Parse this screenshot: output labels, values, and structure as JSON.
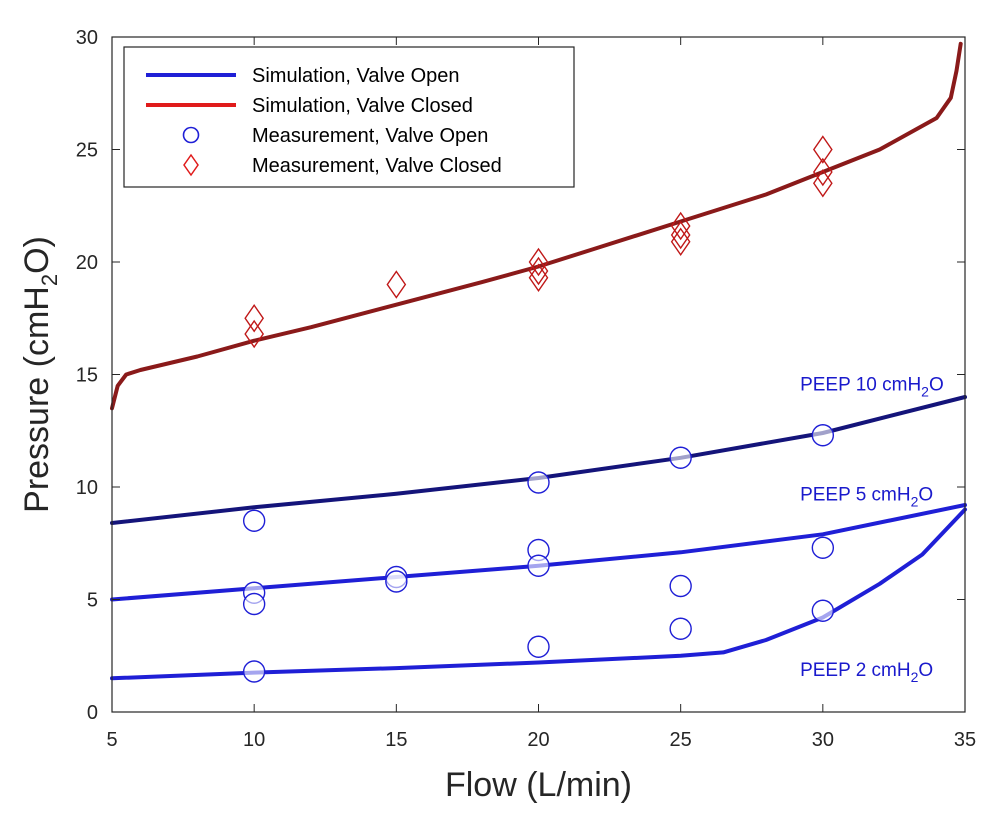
{
  "chart_data": {
    "type": "line",
    "xlabel": "Flow (L/min)",
    "ylabel": {
      "main": "Pressure (cmH",
      "sub": "2",
      "tail": "O)"
    },
    "xlim": [
      5,
      35
    ],
    "ylim": [
      0,
      30
    ],
    "xticks": [
      5,
      10,
      15,
      20,
      25,
      30,
      35
    ],
    "yticks": [
      0,
      5,
      10,
      15,
      20,
      25,
      30
    ],
    "grid": false,
    "legend_position": "top-left",
    "colors": {
      "valve_open": "#1f1fd6",
      "valve_closed": "#e01b1b",
      "valve_closed_line": "#8a1a1a",
      "peep10_line": "#14147a",
      "annotation": "#1a1acc",
      "axis": "#262626"
    },
    "legend": [
      {
        "label": "Simulation, Valve Open",
        "marker": "line",
        "color": "#1f1fd6"
      },
      {
        "label": "Simulation, Valve Closed",
        "marker": "line",
        "color": "#e01b1b"
      },
      {
        "label": "Measurement, Valve Open",
        "marker": "circle",
        "color": "#1f1fd6"
      },
      {
        "label": "Measurement, Valve Closed",
        "marker": "diamond",
        "color": "#e01b1b"
      }
    ],
    "annotations": [
      {
        "main": "PEEP 10 cmH",
        "sub": "2",
        "tail": "O",
        "x": 29.2,
        "y": 14.3
      },
      {
        "main": "PEEP 5 cmH",
        "sub": "2",
        "tail": "O",
        "x": 29.2,
        "y": 9.4
      },
      {
        "main": "PEEP 2 cmH",
        "sub": "2",
        "tail": "O",
        "x": 29.2,
        "y": 1.6
      }
    ],
    "series": [
      {
        "name": "Simulation, Valve Closed",
        "kind": "line",
        "color": "#8a1a1a",
        "x": [
          5,
          5.2,
          5.5,
          6,
          8,
          10,
          12,
          15,
          18,
          20,
          22,
          25,
          28,
          30,
          32,
          34,
          34.5,
          34.7,
          34.85
        ],
        "y": [
          13.5,
          14.5,
          15.0,
          15.2,
          15.8,
          16.5,
          17.1,
          18.1,
          19.1,
          19.8,
          20.6,
          21.8,
          23.0,
          24.0,
          25.0,
          26.4,
          27.3,
          28.5,
          29.7
        ]
      },
      {
        "name": "Simulation, Valve Open (PEEP 10)",
        "kind": "line",
        "color": "#14147a",
        "x": [
          5,
          10,
          15,
          20,
          25,
          30,
          35
        ],
        "y": [
          8.4,
          9.1,
          9.7,
          10.4,
          11.3,
          12.4,
          14.0
        ]
      },
      {
        "name": "Simulation, Valve Open (PEEP 5)",
        "kind": "line",
        "color": "#1f1fd6",
        "x": [
          5,
          10,
          15,
          20,
          25,
          30,
          35
        ],
        "y": [
          5.0,
          5.5,
          6.0,
          6.5,
          7.1,
          7.9,
          9.2
        ]
      },
      {
        "name": "Simulation, Valve Open (PEEP 2)",
        "kind": "line",
        "color": "#1f1fd6",
        "x": [
          5,
          10,
          15,
          20,
          25,
          26.5,
          28,
          30,
          32,
          33.5,
          35
        ],
        "y": [
          1.5,
          1.75,
          1.95,
          2.2,
          2.5,
          2.65,
          3.2,
          4.2,
          5.7,
          7.0,
          9.0
        ]
      },
      {
        "name": "Measurement, Valve Closed",
        "kind": "diamond",
        "color": "#c01818",
        "x": [
          10,
          10,
          15,
          20,
          20,
          20,
          25,
          25,
          25,
          30,
          30,
          30
        ],
        "y": [
          17.5,
          16.8,
          19.0,
          20.0,
          19.6,
          19.3,
          21.6,
          21.2,
          20.9,
          25.0,
          24.0,
          23.5
        ]
      },
      {
        "name": "Measurement, Valve Open",
        "kind": "circle",
        "color": "#1f1fd6",
        "x": [
          10,
          10,
          10,
          10,
          15,
          15,
          20,
          20,
          20,
          20,
          25,
          25,
          25,
          30,
          30,
          30
        ],
        "y": [
          8.5,
          5.3,
          4.8,
          1.8,
          6.0,
          5.8,
          10.2,
          7.2,
          6.5,
          2.9,
          11.3,
          5.6,
          3.7,
          12.3,
          7.3,
          4.5
        ]
      }
    ]
  }
}
